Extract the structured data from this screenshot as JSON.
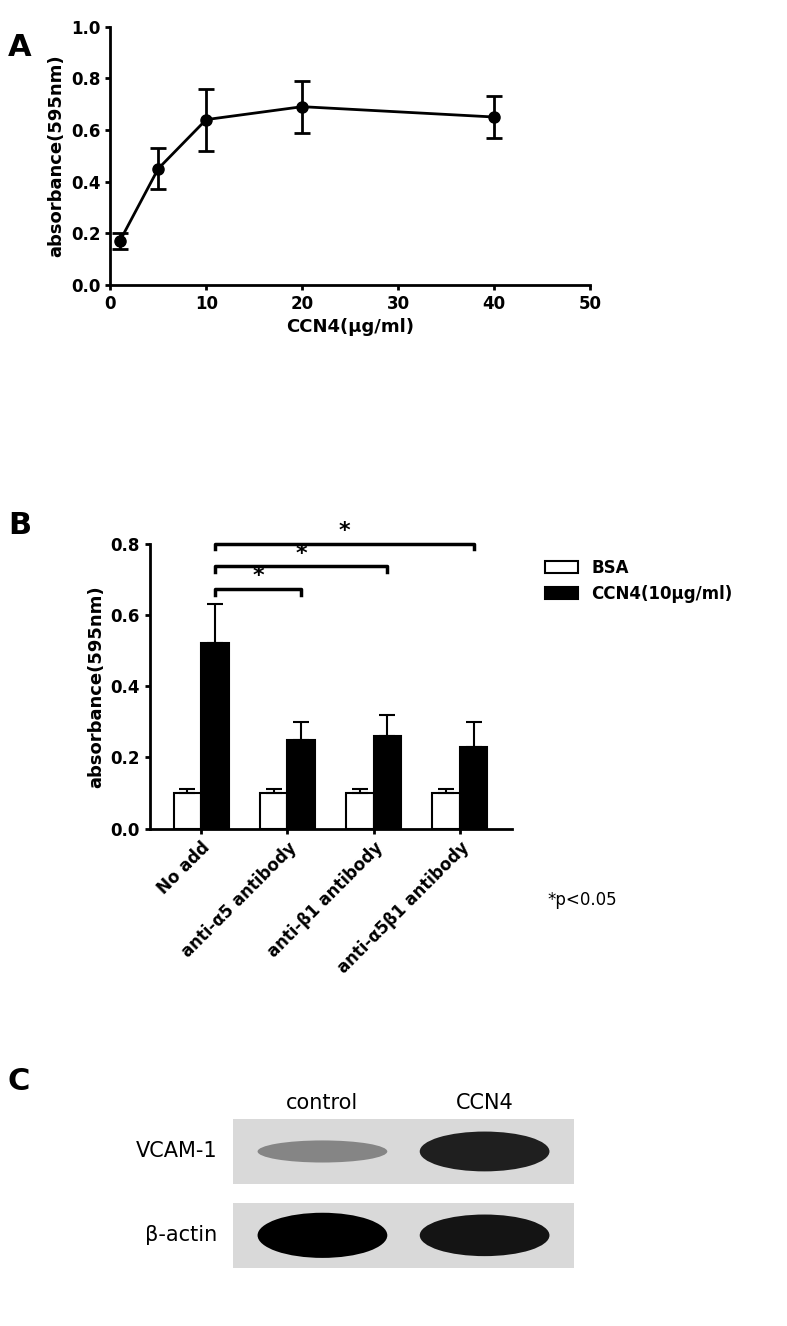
{
  "chart_data": [
    {
      "panel": "A",
      "type": "line",
      "x_label": "CCN4(μg/ml)",
      "y_label": "absorbance(595nm)",
      "x": [
        1,
        5,
        10,
        20,
        40
      ],
      "values": [
        0.17,
        0.45,
        0.64,
        0.69,
        0.65
      ],
      "errors": [
        0.03,
        0.08,
        0.12,
        0.1,
        0.08
      ],
      "color": "#000000",
      "marker": "circle",
      "xlim": [
        0,
        50
      ],
      "xticks": [
        0,
        10,
        20,
        30,
        40,
        50
      ],
      "ylim": [
        0,
        1.0
      ],
      "yticks": [
        {
          "value": 0,
          "label": "0.0"
        },
        {
          "value": 0.2,
          "label": "0.2"
        },
        {
          "value": 0.4,
          "label": "0.4"
        },
        {
          "value": 0.6,
          "label": "0.6"
        },
        {
          "value": 0.8,
          "label": "0.8"
        },
        {
          "value": 1.0,
          "label": "1.0"
        }
      ]
    },
    {
      "panel": "B",
      "type": "bar",
      "y_label": "absorbance(595nm)",
      "categories": [
        "No add",
        "anti-α5 antibody",
        "anti-β1 antibody",
        "anti-α5β1 antibody"
      ],
      "series": [
        {
          "name": "BSA",
          "color": "#ffffff",
          "values": [
            0.1,
            0.1,
            0.1,
            0.1
          ],
          "errors": [
            0.012,
            0.012,
            0.012,
            0.012
          ]
        },
        {
          "name": "CCN4(10μg/ml)",
          "color": "#000000",
          "values": [
            0.52,
            0.25,
            0.26,
            0.23
          ],
          "errors": [
            0.11,
            0.05,
            0.06,
            0.07
          ]
        }
      ],
      "comparisons": [
        {
          "series": "CCN4(10μg/ml)",
          "from": "No add",
          "to": "anti-α5 antibody",
          "label": "*"
        },
        {
          "series": "CCN4(10μg/ml)",
          "from": "No add",
          "to": "anti-β1 antibody",
          "label": "*"
        },
        {
          "series": "CCN4(10μg/ml)",
          "from": "No add",
          "to": "anti-α5β1 antibody",
          "label": "*"
        }
      ],
      "annotation": "*p<0.05",
      "legend": "upper left",
      "ylim": [
        0,
        0.8
      ],
      "yticks": [
        {
          "value": 0,
          "label": "0.0"
        },
        {
          "value": 0.2,
          "label": "0.2"
        },
        {
          "value": 0.4,
          "label": "0.4"
        },
        {
          "value": 0.6,
          "label": "0.6"
        },
        {
          "value": 0.8,
          "label": "0.8"
        }
      ]
    },
    {
      "panel": "C",
      "type": "blot",
      "categories": [
        "control",
        "CCN4"
      ],
      "series": [
        {
          "name": "VCAM-1",
          "values": [
            0.35,
            0.85
          ]
        },
        {
          "name": "β-actin",
          "values": [
            1.0,
            0.9
          ]
        }
      ]
    }
  ]
}
